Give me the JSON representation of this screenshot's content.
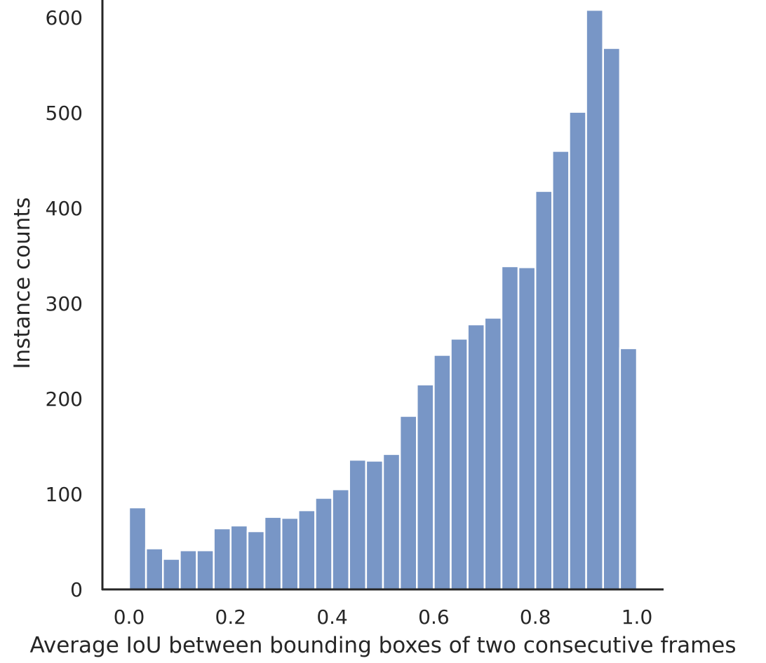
{
  "chart_data": {
    "type": "bar",
    "subtype": "histogram",
    "xlabel": "Average IoU between bounding boxes of two consecutive frames",
    "ylabel": "Instance counts",
    "xlim": [
      -0.05,
      1.05
    ],
    "ylim": [
      0,
      610
    ],
    "xticks": [
      "0.0",
      "0.2",
      "0.4",
      "0.6",
      "0.8",
      "1.0"
    ],
    "yticks": [
      "0",
      "100",
      "200",
      "300",
      "400",
      "500",
      "600"
    ],
    "bin_width": 0.0333,
    "bin_start": 0.0,
    "values": [
      86,
      43,
      32,
      41,
      41,
      64,
      67,
      61,
      76,
      75,
      83,
      96,
      105,
      136,
      135,
      142,
      182,
      215,
      246,
      263,
      278,
      285,
      339,
      338,
      418,
      460,
      501,
      608,
      568,
      253
    ],
    "color": "#7896c6",
    "grid": false,
    "spines": [
      "left",
      "bottom"
    ]
  }
}
